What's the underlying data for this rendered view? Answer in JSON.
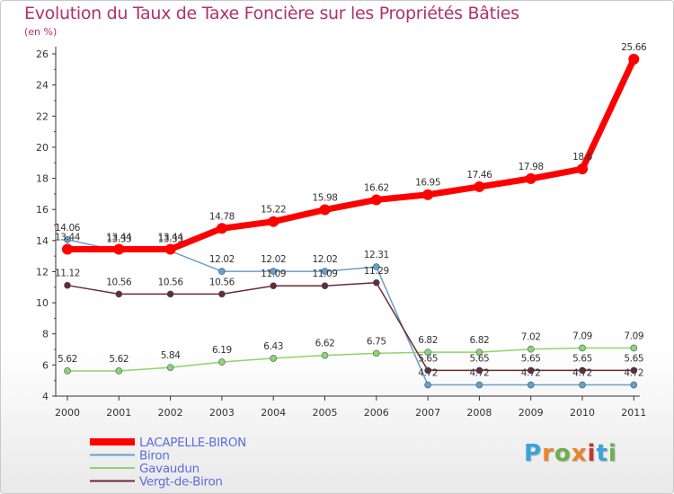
{
  "header": {
    "title": "Evolution du Taux de Taxe Foncière sur les Propriétés Bâties",
    "unit": "(en %)"
  },
  "logo": {
    "text": "Proxiti",
    "colors": [
      "#3aa3d8",
      "#e8852a",
      "#6ab04c",
      "#e8852a",
      "#c0392b",
      "#3aa3d8",
      "#6ab04c"
    ]
  },
  "chart_data": {
    "type": "line",
    "title": "Evolution du Taux de Taxe Foncière sur les Propriétés Bâties",
    "ylabel": "(en %)",
    "xlabel": "",
    "x": [
      "2000",
      "2001",
      "2002",
      "2003",
      "2004",
      "2005",
      "2006",
      "2007",
      "2008",
      "2009",
      "2010",
      "2011"
    ],
    "ylim": [
      4,
      26
    ],
    "yticks": [
      "4",
      "6",
      "8",
      "10",
      "12",
      "14",
      "16",
      "18",
      "20",
      "22",
      "24",
      "26"
    ],
    "grid": false,
    "legend_position": "bottom-left",
    "series": [
      {
        "name": "LACAPELLE-BIRON",
        "color": "#ff0000",
        "values": [
          13.44,
          13.44,
          13.44,
          14.78,
          15.22,
          15.98,
          16.62,
          16.95,
          17.46,
          17.98,
          18.6,
          25.66
        ],
        "labels": [
          "13.44",
          "13.44",
          "13.44",
          "14.78",
          "15.22",
          "15.98",
          "16.62",
          "16.95",
          "17.46",
          "17.98",
          "18.6",
          "25.66"
        ]
      },
      {
        "name": "Biron",
        "color": "#6b9ec8",
        "values": [
          14.06,
          13.33,
          13.33,
          12.02,
          12.02,
          12.02,
          12.31,
          4.72,
          4.72,
          4.72,
          4.72,
          4.72
        ],
        "labels": [
          "14.06",
          "13.33",
          "13.33",
          "12.02",
          "12.02",
          "12.02",
          "12.31",
          "4.72",
          "4.72",
          "4.72",
          "4.72",
          "4.72"
        ]
      },
      {
        "name": "Gavaudun",
        "color": "#8fd46a",
        "values": [
          5.62,
          5.62,
          5.84,
          6.19,
          6.43,
          6.62,
          6.75,
          6.82,
          6.82,
          7.02,
          7.09,
          7.09
        ],
        "labels": [
          "5.62",
          "5.62",
          "5.84",
          "6.19",
          "6.43",
          "6.62",
          "6.75",
          "6.82",
          "6.82",
          "7.02",
          "7.09",
          "7.09"
        ]
      },
      {
        "name": "Vergt-de-Biron",
        "color": "#6a2a30",
        "values": [
          11.12,
          10.56,
          10.56,
          10.56,
          11.09,
          11.09,
          11.29,
          5.65,
          5.65,
          5.65,
          5.65,
          5.65
        ],
        "labels": [
          "11.12",
          "10.56",
          "10.56",
          "10.56",
          "11.09",
          "11.09",
          "11.29",
          "5.65",
          "5.65",
          "5.65",
          "5.65",
          "5.65"
        ]
      }
    ]
  }
}
